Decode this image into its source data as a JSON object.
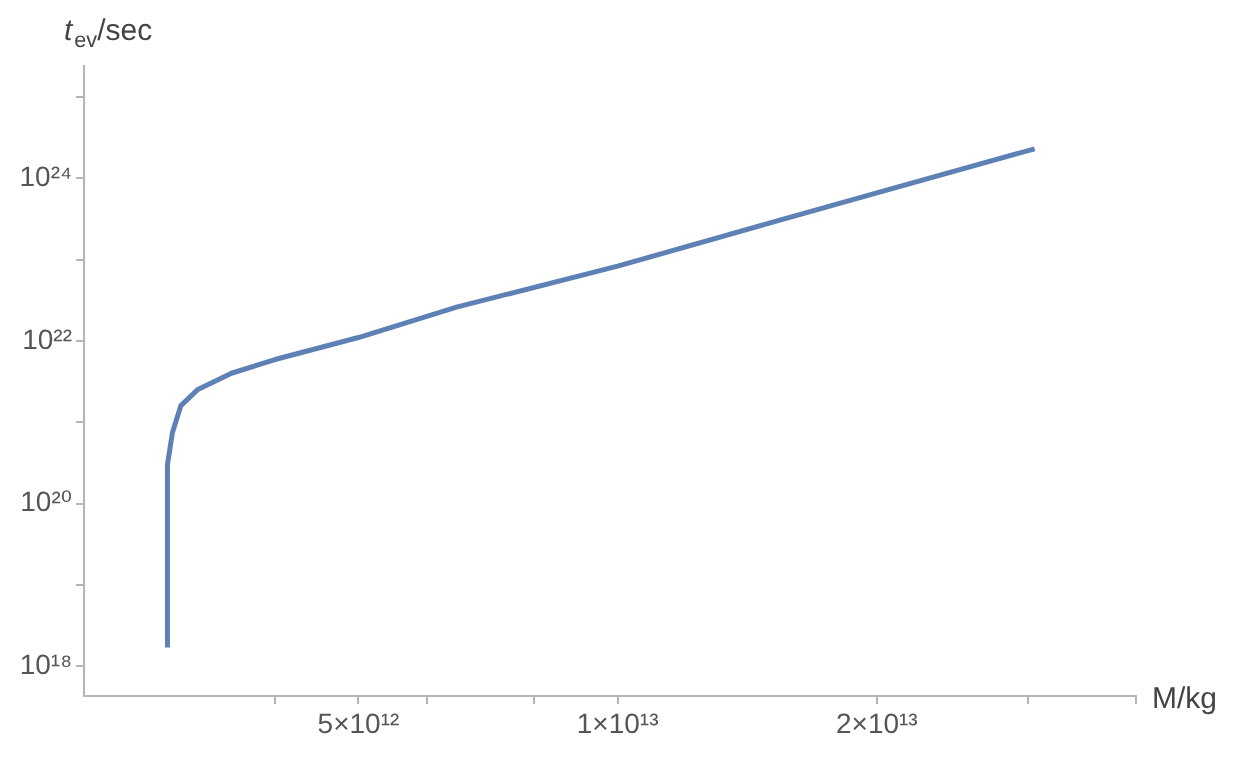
{
  "chart_data": {
    "type": "line",
    "xlabel": "M/kg",
    "ylabel": "t$_{ev}$/sec",
    "log": "xy",
    "x": [
      3000000000000.0,
      3000000000000.0,
      3040000000000.0,
      3110000000000.0,
      3250000000000.0,
      3560000000000.0,
      4000000000000.0,
      5000000000000.0,
      6500000000000.0,
      10000000000000.0,
      15000000000000.0,
      20000000000000.0,
      30500000000000.0
    ],
    "values": [
      1.7e+18,
      3e+20,
      7.4e+20,
      1.6e+21,
      2.5e+21,
      4e+21,
      5.9e+21,
      1.1e+22,
      2.6e+22,
      8.3e+22,
      2.8e+23,
      6.6e+23,
      2.3e+24
    ],
    "color": "#5e81b5",
    "xlim": [
      2400000000000.0,
      40000000000000.0
    ],
    "xticks": [
      {
        "value": 4000000000000.0,
        "label": null
      },
      {
        "value": 5000000000000.0,
        "label": "5×10¹²"
      },
      {
        "value": 6000000000000.0,
        "label": null
      },
      {
        "value": 8000000000000.0,
        "label": null
      },
      {
        "value": 10000000000000.0,
        "label": "1×10¹³"
      },
      {
        "value": 20000000000000.0,
        "label": "2×10¹³"
      },
      {
        "value": 30000000000000.0,
        "label": null
      },
      {
        "value": 40000000000000.0,
        "label": null
      }
    ],
    "ylim": [
      4.3e+17,
      2.4e+25
    ],
    "yticks": [
      {
        "value": 1e+18,
        "label": "10¹⁸"
      },
      {
        "value": 1e+19,
        "label": null
      },
      {
        "value": 1e+20,
        "label": "10²⁰"
      },
      {
        "value": 1e+21,
        "label": null
      },
      {
        "value": 1e+22,
        "label": "10²²"
      },
      {
        "value": 1e+23,
        "label": null
      },
      {
        "value": 1e+24,
        "label": "10²⁴"
      },
      {
        "value": 1e+25,
        "label": null
      }
    ]
  }
}
